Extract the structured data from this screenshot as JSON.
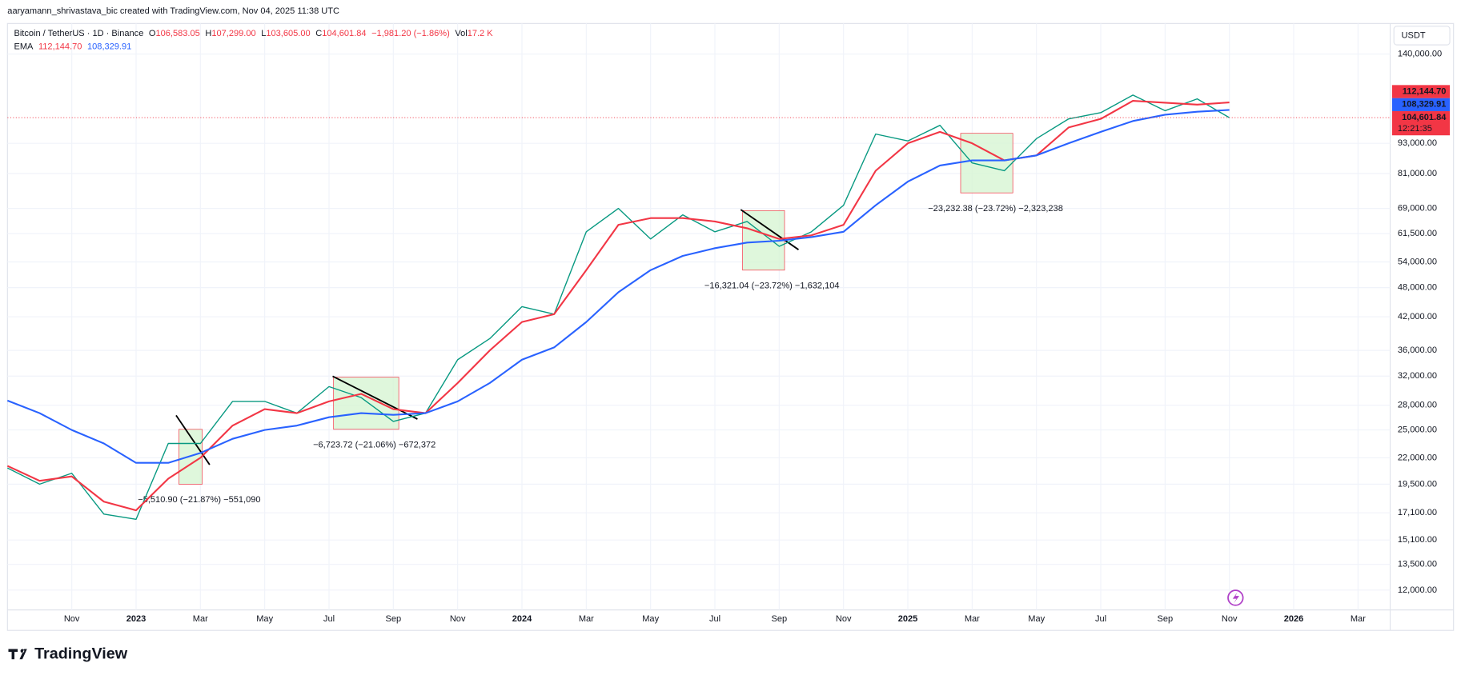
{
  "header": {
    "attribution": "aaryamann_shrivastava_bic created with TradingView.com, Nov 04, 2025 11:38 UTC",
    "symbol": "Bitcoin / TetherUS · 1D · Binance",
    "open_key": "O",
    "open": "106,583.05",
    "high_key": "H",
    "high": "107,299.00",
    "low_key": "L",
    "low": "103,605.00",
    "close_key": "C",
    "close": "104,601.84",
    "change": "−1,981.20 (−1.86%)",
    "volume_key": "Vol",
    "volume": "17.2 K",
    "ema_key": "EMA",
    "currency": "USDT",
    "logo": "TradingView"
  },
  "chart_data": {
    "type": "line",
    "log_scale": true,
    "grid": true,
    "x": [
      "2022-09",
      "2022-10",
      "2022-11",
      "2022-12",
      "2023-01",
      "2023-02",
      "2023-03",
      "2023-04",
      "2023-05",
      "2023-06",
      "2023-07",
      "2023-08",
      "2023-09",
      "2023-10",
      "2023-11",
      "2023-12",
      "2024-01",
      "2024-02",
      "2024-03",
      "2024-04",
      "2024-05",
      "2024-06",
      "2024-07",
      "2024-08",
      "2024-09",
      "2024-10",
      "2024-11",
      "2024-12",
      "2025-01",
      "2025-02",
      "2025-03",
      "2025-04",
      "2025-05",
      "2025-06",
      "2025-07",
      "2025-08",
      "2025-09",
      "2025-10",
      "2025-11"
    ],
    "series": [
      {
        "color": "#089981",
        "values": [
          21000,
          19500,
          20500,
          17000,
          16600,
          23500,
          23500,
          28500,
          28500,
          27000,
          30500,
          29000,
          26000,
          27000,
          34500,
          38000,
          44000,
          42500,
          62000,
          69000,
          60000,
          67000,
          62000,
          65000,
          58000,
          62000,
          70000,
          97000,
          94000,
          101000,
          85000,
          82000,
          95000,
          104000,
          107000,
          116000,
          108000,
          114000,
          104601.84
        ],
        "value_label": "104,601.84",
        "countdown": "12:21:35"
      },
      {
        "color": "#f23645",
        "values": [
          21200,
          19800,
          20200,
          18000,
          17300,
          20000,
          22000,
          25500,
          27500,
          27000,
          28500,
          29500,
          27500,
          27000,
          31000,
          36000,
          41000,
          42500,
          52000,
          64000,
          66000,
          66000,
          65000,
          63000,
          60000,
          61000,
          64000,
          82000,
          93000,
          98000,
          93000,
          86000,
          88000,
          100000,
          104000,
          113000,
          112000,
          111000,
          112144.7
        ],
        "value_label": "112,144.70"
      },
      {
        "color": "#2962ff",
        "values": [
          28600,
          27000,
          25000,
          23500,
          21500,
          21500,
          22500,
          24000,
          25000,
          25500,
          26500,
          27000,
          26800,
          27000,
          28500,
          31000,
          34500,
          36500,
          41000,
          47000,
          52000,
          55500,
          57500,
          59000,
          59500,
          60500,
          62000,
          70000,
          78000,
          84000,
          86000,
          86000,
          88000,
          93000,
          98000,
          103000,
          106000,
          107500,
          108329.91
        ],
        "value_label": "108,329.91"
      }
    ],
    "xlim": [
      "2022-09",
      "2026-04"
    ],
    "xticks": [
      {
        "value": "2022-11",
        "label": "Nov"
      },
      {
        "value": "2023-01",
        "label": "2023"
      },
      {
        "value": "2023-03",
        "label": "Mar"
      },
      {
        "value": "2023-05",
        "label": "May"
      },
      {
        "value": "2023-07",
        "label": "Jul"
      },
      {
        "value": "2023-09",
        "label": "Sep"
      },
      {
        "value": "2023-11",
        "label": "Nov"
      },
      {
        "value": "2024-01",
        "label": "2024"
      },
      {
        "value": "2024-03",
        "label": "Mar"
      },
      {
        "value": "2024-05",
        "label": "May"
      },
      {
        "value": "2024-07",
        "label": "Jul"
      },
      {
        "value": "2024-09",
        "label": "Sep"
      },
      {
        "value": "2024-11",
        "label": "Nov"
      },
      {
        "value": "2025-01",
        "label": "2025"
      },
      {
        "value": "2025-03",
        "label": "Mar"
      },
      {
        "value": "2025-05",
        "label": "May"
      },
      {
        "value": "2025-07",
        "label": "Jul"
      },
      {
        "value": "2025-09",
        "label": "Sep"
      },
      {
        "value": "2025-11",
        "label": "Nov"
      },
      {
        "value": "2026-01",
        "label": "2026"
      },
      {
        "value": "2026-03",
        "label": "Mar"
      }
    ],
    "ylim": [
      11100,
      159000
    ],
    "yticks": [
      {
        "value": 12000,
        "label": "12,000.00"
      },
      {
        "value": 13500,
        "label": "13,500.00"
      },
      {
        "value": 15100,
        "label": "15,100.00"
      },
      {
        "value": 17100,
        "label": "17,100.00"
      },
      {
        "value": 19500,
        "label": "19,500.00"
      },
      {
        "value": 22000,
        "label": "22,000.00"
      },
      {
        "value": 25000,
        "label": "25,000.00"
      },
      {
        "value": 28000,
        "label": "28,000.00"
      },
      {
        "value": 32000,
        "label": "32,000.00"
      },
      {
        "value": 36000,
        "label": "36,000.00"
      },
      {
        "value": 42000,
        "label": "42,000.00"
      },
      {
        "value": 48000,
        "label": "48,000.00"
      },
      {
        "value": 54000,
        "label": "54,000.00"
      },
      {
        "value": 61500,
        "label": "61,500.00"
      },
      {
        "value": 69000,
        "label": "69,000.00"
      },
      {
        "value": 81000,
        "label": "81,000.00"
      },
      {
        "value": 93000,
        "label": "93,000.00"
      },
      {
        "value": 140000,
        "label": "140,000.00"
      }
    ],
    "annotations": [
      "−5,510.90 (−21.87%) −551,090",
      "−6,723.72 (−21.06%) −672,372",
      "−16,321.04 (−23.72%) −1,632,104",
      "−23,232.38 (−23.72%) −2,323,238"
    ]
  }
}
